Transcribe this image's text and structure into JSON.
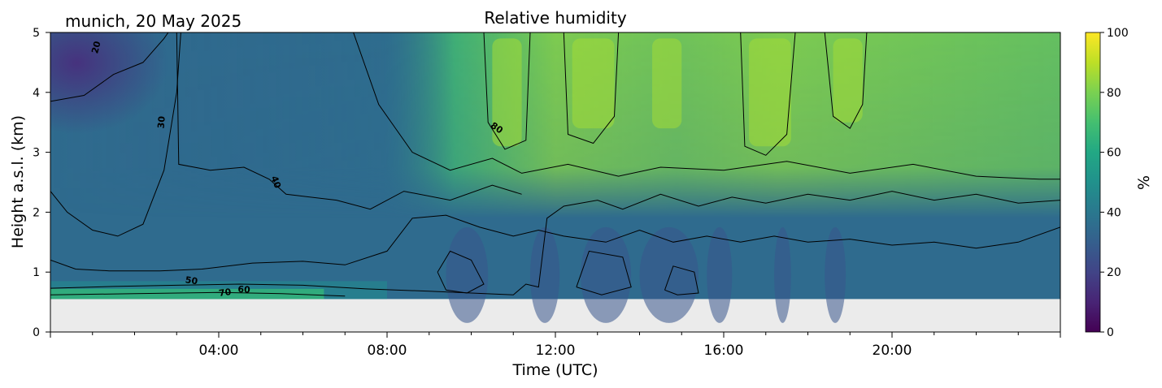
{
  "chart_data": {
    "type": "heatmap",
    "title": "Relative humidity",
    "subtitle": "munich, 20 May 2025",
    "xlabel": "Time (UTC)",
    "ylabel": "Height a.s.l. (km)",
    "x_range_hours": [
      0,
      24
    ],
    "xlim": [
      "00:00",
      "24:00"
    ],
    "x_ticks": [
      {
        "hour": 4,
        "label": "04:00"
      },
      {
        "hour": 8,
        "label": "08:00"
      },
      {
        "hour": 12,
        "label": "12:00"
      },
      {
        "hour": 16,
        "label": "16:00"
      },
      {
        "hour": 20,
        "label": "20:00"
      }
    ],
    "ylim": [
      0,
      5
    ],
    "y_ticks": [
      {
        "value": 0,
        "label": "0"
      },
      {
        "value": 1,
        "label": "1"
      },
      {
        "value": 2,
        "label": "2"
      },
      {
        "value": 3,
        "label": "3"
      },
      {
        "value": 4,
        "label": "4"
      },
      {
        "value": 5,
        "label": "5"
      }
    ],
    "data_min_height_km": 0.55,
    "colorbar": {
      "label": "%",
      "range": [
        0,
        100
      ],
      "ticks": [
        {
          "value": 0,
          "label": "0"
        },
        {
          "value": 20,
          "label": "20"
        },
        {
          "value": 40,
          "label": "40"
        },
        {
          "value": 60,
          "label": "60"
        },
        {
          "value": 80,
          "label": "80"
        },
        {
          "value": 100,
          "label": "100"
        }
      ],
      "colormap": "viridis"
    },
    "contour_levels": [
      20,
      30,
      40,
      50,
      60,
      70,
      80
    ],
    "contour_labels": [
      {
        "text": "20",
        "hour": 1.1,
        "km": 4.75,
        "rotate": -75
      },
      {
        "text": "30",
        "hour": 2.65,
        "km": 3.5,
        "rotate": -85
      },
      {
        "text": "40",
        "hour": 5.35,
        "km": 2.5,
        "rotate": 70
      },
      {
        "text": "50",
        "hour": 3.35,
        "km": 0.85,
        "rotate": 8
      },
      {
        "text": "70",
        "hour": 4.15,
        "km": 0.65,
        "rotate": -8
      },
      {
        "text": "60",
        "hour": 4.6,
        "km": 0.7,
        "rotate": 3
      },
      {
        "text": "80",
        "hour": 10.6,
        "km": 3.4,
        "rotate": 35
      }
    ],
    "grid": false,
    "no_data_color": "#ebebeb",
    "contour_color": "#000000"
  }
}
